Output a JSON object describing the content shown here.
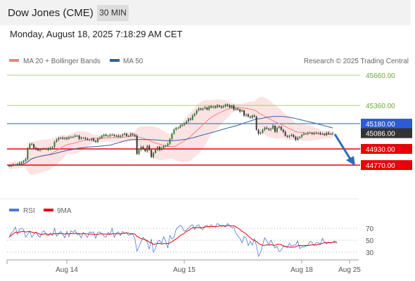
{
  "header": {
    "title": "Dow Jones (CME)",
    "timeframe": "30 MIN"
  },
  "datetime": "Monday, August 18, 2025 7:18:29 AM CET",
  "legend": {
    "ma20": "MA 20 + Bollinger Bands",
    "ma50": "MA 50",
    "credit": "Research © 2025 Trading Central"
  },
  "colors": {
    "ma20": "#f08080",
    "ma50": "#2f5fa8",
    "resistance": "#8cc152",
    "support": "#e8000b",
    "ma50_line": "#2d5bd6",
    "current": "#333333",
    "arrow": "#2f6bb5",
    "rsi": "#4c79d4",
    "rsi_ma": "#e8000b"
  },
  "chart_data": [
    {
      "type": "candlestick",
      "title": "Dow Jones (CME)",
      "timeframe": "30 MIN",
      "x_ticks": [
        "Aug 14",
        "Aug 15",
        "Aug 18",
        "Aug 25"
      ],
      "levels": [
        {
          "label": "45660.00",
          "value": 45660,
          "kind": "resistance"
        },
        {
          "label": "45360.00",
          "value": 45360,
          "kind": "resistance"
        },
        {
          "label": "45180.00",
          "value": 45180,
          "kind": "ma50"
        },
        {
          "label": "45086.00",
          "value": 45086,
          "kind": "current"
        },
        {
          "label": "44930.00",
          "value": 44930,
          "kind": "support"
        },
        {
          "label": "44770.00",
          "value": 44770,
          "kind": "support"
        }
      ],
      "ylim": [
        44530,
        45760
      ],
      "close": [
        44765,
        44765,
        44775,
        44775,
        44780,
        44790,
        44800,
        44810,
        44830,
        44940,
        44980,
        44975,
        44940,
        44930,
        44915,
        44930,
        44930,
        44930,
        44935,
        44925,
        44940,
        44950,
        45000,
        45020,
        45040,
        45040,
        45030,
        45040,
        45030,
        45045,
        45050,
        45050,
        45060,
        45060,
        45030,
        45040,
        45040,
        45030,
        45020,
        45020,
        45030,
        45010,
        45000,
        45030,
        45040,
        45060,
        45070,
        45060,
        45060,
        45070,
        45070,
        45060,
        45060,
        45050,
        45060,
        45070,
        45080,
        45060,
        45060,
        45080,
        45070,
        45060,
        44880,
        44920,
        44950,
        44930,
        44910,
        44960,
        44920,
        44850,
        44890,
        44920,
        44950,
        44920,
        44940,
        44960,
        44960,
        44980,
        45030,
        45080,
        45120,
        45140,
        45140,
        45160,
        45170,
        45180,
        45200,
        45230,
        45220,
        45260,
        45280,
        45310,
        45330,
        45320,
        45330,
        45340,
        45320,
        45350,
        45340,
        45350,
        45340,
        45360,
        45350,
        45340,
        45350,
        45370,
        45360,
        45340,
        45360,
        45320,
        45330,
        45320,
        45300,
        45310,
        45260,
        45270,
        45250,
        45240,
        45260,
        45250,
        45120,
        45080,
        45090,
        45120,
        45140,
        45130,
        45120,
        45130,
        45160,
        45100,
        45140,
        45150,
        45120,
        45100,
        45060,
        45050,
        45060,
        45070,
        45050,
        45020,
        45040,
        45050,
        45070,
        45080,
        45080,
        45090,
        45090,
        45080,
        45090,
        45090,
        45090,
        45080,
        45080,
        45070,
        45090,
        45080,
        45080,
        45086
      ],
      "rsi": [
        55,
        62,
        65,
        72,
        60,
        68,
        70,
        68,
        55,
        60,
        65,
        55,
        60,
        64,
        58,
        55,
        64,
        66,
        59,
        57,
        62,
        58,
        70,
        57,
        60,
        65,
        60,
        54,
        65,
        56,
        66,
        63,
        67,
        59,
        60,
        54,
        63,
        59,
        55,
        64,
        63,
        64,
        53,
        63,
        64,
        61,
        57,
        55,
        63,
        60,
        70,
        55,
        62,
        64,
        58,
        65,
        61,
        63,
        58,
        60,
        60,
        53,
        32,
        39,
        48,
        55,
        51,
        47,
        35,
        52,
        30,
        36,
        48,
        50,
        45,
        56,
        48,
        37,
        58,
        52,
        55,
        68,
        72,
        75,
        72,
        65,
        67,
        70,
        74,
        76,
        68,
        74,
        76,
        70,
        68,
        74,
        75,
        72,
        76,
        73,
        72,
        78,
        76,
        73,
        74,
        72,
        78,
        74,
        71,
        72,
        62,
        57,
        53,
        46,
        56,
        54,
        41,
        48,
        42,
        52,
        41,
        23,
        30,
        42,
        54,
        49,
        43,
        50,
        44,
        37,
        40,
        31,
        33,
        40,
        39,
        38,
        45,
        40,
        42,
        42,
        49,
        36,
        39,
        39,
        40,
        42,
        48,
        46,
        41,
        46,
        46,
        43,
        53,
        47,
        44,
        47,
        45,
        47,
        49,
        45
      ],
      "rsi_ticks": [
        "70",
        "50",
        "30"
      ],
      "rsi_levels": [
        70,
        50,
        30
      ],
      "rsi_ylim": [
        20,
        82
      ],
      "legend": [
        "RSI",
        "9MA"
      ]
    }
  ]
}
